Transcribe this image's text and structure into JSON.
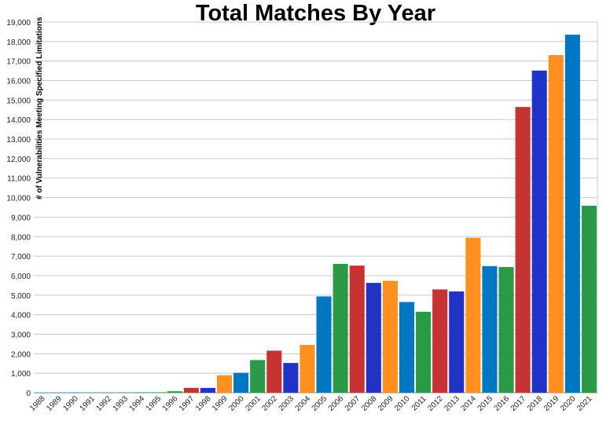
{
  "chart_data": {
    "type": "bar",
    "title": "Total Matches By Year",
    "xlabel": "",
    "ylabel": "# of Vulnerabilities Meeting Specified Limitations",
    "ylim": [
      0,
      19000
    ],
    "y_tick_step": 1000,
    "grid": true,
    "categories": [
      "1988",
      "1989",
      "1990",
      "1991",
      "1992",
      "1993",
      "1994",
      "1995",
      "1996",
      "1997",
      "1998",
      "1999",
      "2000",
      "2001",
      "2002",
      "2003",
      "2004",
      "2005",
      "2006",
      "2007",
      "2008",
      "2009",
      "2010",
      "2011",
      "2012",
      "2013",
      "2014",
      "2015",
      "2016",
      "2017",
      "2018",
      "2019",
      "2020",
      "2021"
    ],
    "values": [
      2,
      2,
      10,
      15,
      13,
      13,
      25,
      25,
      75,
      250,
      245,
      895,
      1020,
      1675,
      2155,
      1525,
      2450,
      4935,
      6605,
      6515,
      5630,
      5735,
      4650,
      4150,
      5295,
      5190,
      7945,
      6490,
      6445,
      14645,
      16510,
      17305,
      18350,
      9585
    ],
    "colors": [
      "#0077c2",
      "#2b9a47",
      "#c73232",
      "#1f34c7",
      "#ff9020"
    ],
    "color_sequence": [
      0,
      0,
      0,
      1,
      1,
      1,
      1,
      1,
      1,
      2,
      3,
      4,
      0,
      1,
      2,
      3,
      4,
      0,
      1,
      2,
      3,
      4,
      0,
      1,
      2,
      3,
      4,
      0,
      1,
      2,
      3,
      4,
      0,
      1
    ]
  }
}
